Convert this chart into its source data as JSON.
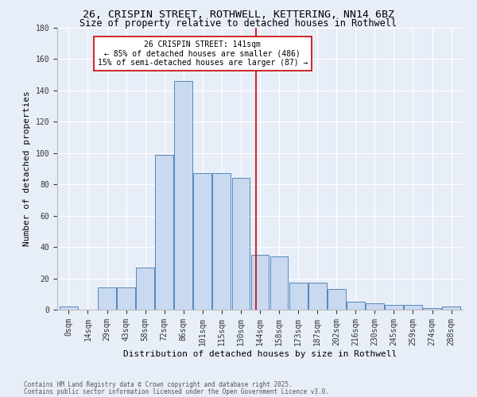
{
  "title_line1": "26, CRISPIN STREET, ROTHWELL, KETTERING, NN14 6BZ",
  "title_line2": "Size of property relative to detached houses in Rothwell",
  "xlabel": "Distribution of detached houses by size in Rothwell",
  "ylabel": "Number of detached properties",
  "footer_line1": "Contains HM Land Registry data © Crown copyright and database right 2025.",
  "footer_line2": "Contains public sector information licensed under the Open Government Licence v3.0.",
  "bin_labels": [
    "0sqm",
    "14sqm",
    "29sqm",
    "43sqm",
    "58sqm",
    "72sqm",
    "86sqm",
    "101sqm",
    "115sqm",
    "130sqm",
    "144sqm",
    "158sqm",
    "173sqm",
    "187sqm",
    "202sqm",
    "216sqm",
    "230sqm",
    "245sqm",
    "259sqm",
    "274sqm",
    "288sqm"
  ],
  "bar_values": [
    2,
    0,
    14,
    14,
    27,
    99,
    146,
    87,
    87,
    84,
    35,
    34,
    17,
    17,
    13,
    5,
    4,
    3,
    3,
    1,
    2
  ],
  "bar_color": "#c9d9f0",
  "bar_edge_color": "#5588bb",
  "annotation_text": "26 CRISPIN STREET: 141sqm\n← 85% of detached houses are smaller (486)\n15% of semi-detached houses are larger (87) →",
  "annotation_box_color": "#ffffff",
  "annotation_box_edge_color": "#cc0000",
  "vline_color": "#cc0000",
  "ylim": [
    0,
    180
  ],
  "yticks": [
    0,
    20,
    40,
    60,
    80,
    100,
    120,
    140,
    160,
    180
  ],
  "bg_color": "#e8eef8",
  "plot_bg_color": "#e8eef8",
  "grid_color": "#ffffff",
  "title_fontsize": 9.5,
  "subtitle_fontsize": 8.5,
  "axis_label_fontsize": 8,
  "tick_fontsize": 7,
  "annotation_fontsize": 7,
  "footer_fontsize": 5.5
}
